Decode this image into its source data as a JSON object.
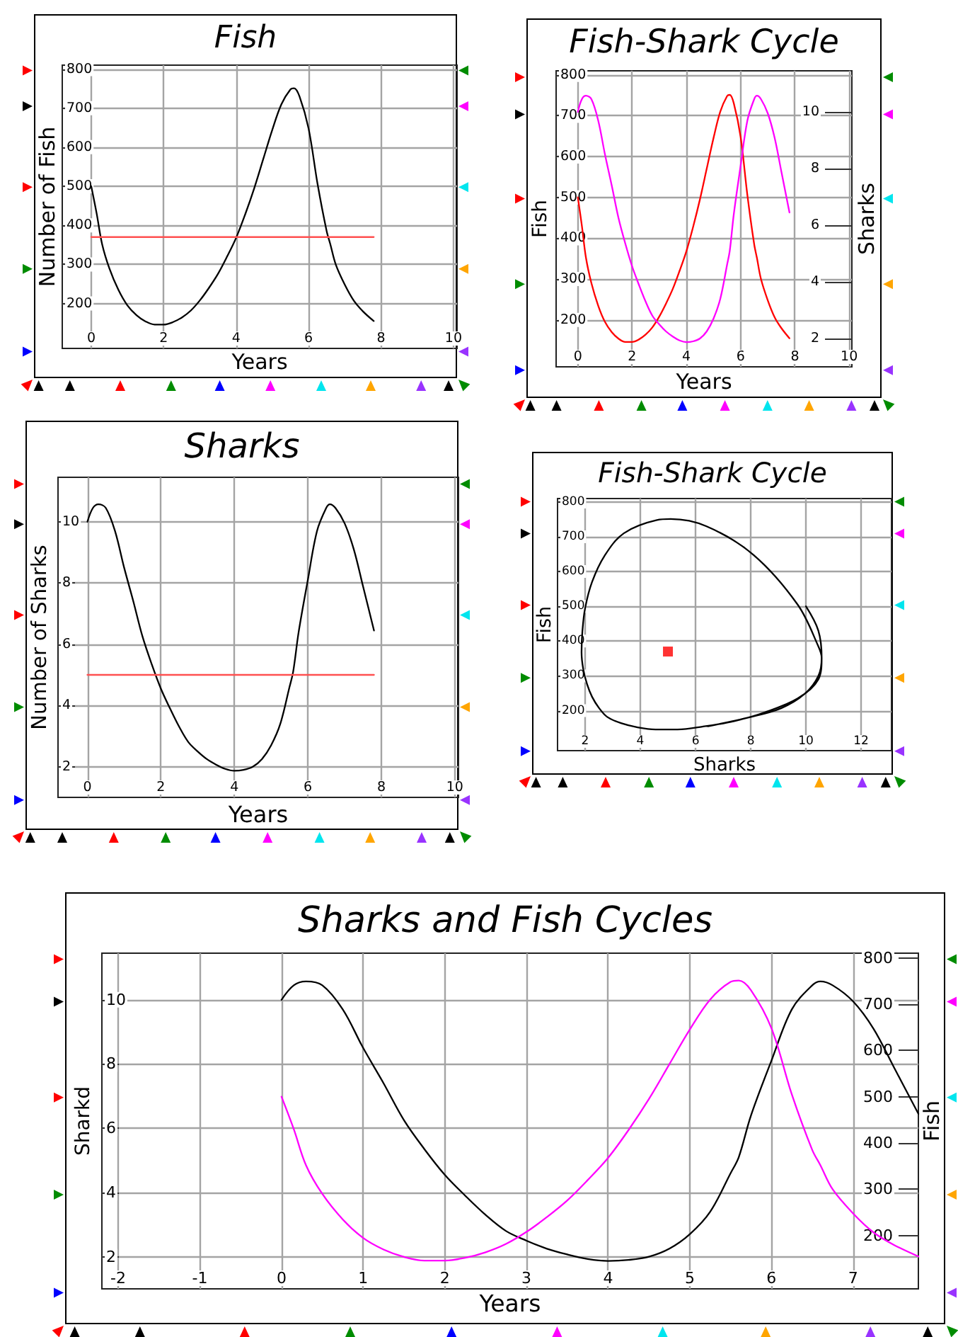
{
  "chart_data": [
    {
      "type": "line",
      "title": "Fish",
      "xlabel": "Years",
      "ylabel": "Number of Fish",
      "x": [
        0,
        0.15,
        0.3,
        0.5,
        0.75,
        1,
        1.25,
        1.5,
        1.75,
        2,
        2.25,
        2.5,
        2.75,
        3,
        3.25,
        3.5,
        3.75,
        4,
        4.25,
        4.5,
        4.75,
        5,
        5.25,
        5.5,
        5.6,
        5.75,
        6,
        6.25,
        6.5,
        6.6,
        6.75,
        7,
        7.25,
        7.5,
        7.8
      ],
      "xlim": [
        -0.8,
        10.1
      ],
      "xticks": [
        0,
        2,
        4,
        6,
        8,
        10
      ],
      "ylim": [
        85,
        810
      ],
      "yticks": [
        200,
        300,
        400,
        500,
        600,
        700,
        800
      ],
      "grid": true,
      "series": [
        {
          "color": "#000000",
          "values": [
            500,
            430,
            352,
            290,
            235,
            195,
            170,
            154,
            146,
            146,
            152,
            164,
            182,
            208,
            240,
            276,
            320,
            368,
            428,
            495,
            570,
            645,
            710,
            748,
            751,
            730,
            648,
            505,
            385,
            352,
            300,
            248,
            207,
            180,
            155
          ]
        },
        {
          "color": "#ff5050",
          "x": [
            0,
            7.8
          ],
          "values": [
            370,
            370
          ]
        }
      ]
    },
    {
      "type": "line",
      "title": "Fish-Shark Cycle",
      "xlabel": "Years",
      "ylabel": "Fish",
      "y2label": "Sharks",
      "x": [
        0,
        0.15,
        0.3,
        0.5,
        0.75,
        1,
        1.25,
        1.5,
        1.75,
        2,
        2.25,
        2.5,
        2.75,
        3,
        3.25,
        3.5,
        3.75,
        4,
        4.25,
        4.5,
        4.75,
        5,
        5.25,
        5.5,
        5.6,
        5.75,
        6,
        6.25,
        6.5,
        6.6,
        6.75,
        7,
        7.25,
        7.5,
        7.8
      ],
      "xlim": [
        -0.8,
        10.1
      ],
      "xticks": [
        0,
        2,
        4,
        6,
        8,
        10
      ],
      "ylim": [
        85,
        810
      ],
      "yticks": [
        200,
        300,
        400,
        500,
        600,
        700,
        800
      ],
      "y2lim": [
        1,
        11.45
      ],
      "y2ticks": [
        2,
        4,
        6,
        8,
        10
      ],
      "grid": true,
      "series": [
        {
          "color": "#ff0000",
          "values": [
            500,
            430,
            352,
            290,
            235,
            195,
            170,
            154,
            146,
            146,
            152,
            164,
            182,
            208,
            240,
            276,
            320,
            368,
            428,
            495,
            570,
            645,
            710,
            748,
            751,
            730,
            648,
            505,
            385,
            352,
            300,
            248,
            207,
            180,
            155
          ]
        },
        {
          "color": "#ff00ff",
          "axis": "y2",
          "values": [
            10,
            10.45,
            10.57,
            10.45,
            9.7,
            8.5,
            7.4,
            6.25,
            5.35,
            4.55,
            3.9,
            3.3,
            2.8,
            2.5,
            2.25,
            2.07,
            1.93,
            1.87,
            1.9,
            2,
            2.25,
            2.7,
            3.4,
            4.6,
            5.1,
            6.4,
            8.1,
            9.7,
            10.45,
            10.57,
            10.45,
            9.95,
            9.1,
            7.9,
            6.45
          ]
        }
      ]
    },
    {
      "type": "line",
      "title": "Sharks",
      "xlabel": "Years",
      "ylabel": "Number of Sharks",
      "x": [
        0,
        0.15,
        0.3,
        0.5,
        0.75,
        1,
        1.25,
        1.5,
        1.75,
        2,
        2.25,
        2.5,
        2.75,
        3,
        3.25,
        3.5,
        3.75,
        4,
        4.25,
        4.5,
        4.75,
        5,
        5.25,
        5.5,
        5.6,
        5.75,
        6,
        6.25,
        6.5,
        6.6,
        6.75,
        7,
        7.25,
        7.5,
        7.8
      ],
      "xlim": [
        -0.8,
        10.1
      ],
      "xticks": [
        0,
        2,
        4,
        6,
        8,
        10
      ],
      "ylim": [
        1,
        11.45
      ],
      "yticks": [
        2,
        4,
        6,
        8,
        10
      ],
      "grid": true,
      "series": [
        {
          "color": "#000000",
          "values": [
            10,
            10.45,
            10.57,
            10.45,
            9.7,
            8.5,
            7.4,
            6.25,
            5.35,
            4.55,
            3.9,
            3.3,
            2.8,
            2.5,
            2.25,
            2.07,
            1.93,
            1.87,
            1.9,
            2,
            2.25,
            2.7,
            3.4,
            4.6,
            5.1,
            6.4,
            8.1,
            9.7,
            10.45,
            10.57,
            10.45,
            9.95,
            9.1,
            7.9,
            6.45
          ]
        },
        {
          "color": "#ff5050",
          "x": [
            0,
            7.8
          ],
          "values": [
            5,
            5
          ]
        }
      ]
    },
    {
      "type": "line",
      "title": "Fish-Shark Cycle",
      "xlabel": "Sharks",
      "ylabel": "Fish",
      "xlim": [
        1,
        13.1
      ],
      "xticks": [
        2,
        4,
        6,
        8,
        10,
        12
      ],
      "ylim": [
        85,
        810
      ],
      "yticks": [
        200,
        300,
        400,
        500,
        600,
        700,
        800
      ],
      "grid": true,
      "series": [
        {
          "color": "#000000",
          "x": [
            10,
            10.45,
            10.57,
            10.45,
            9.7,
            8.5,
            7.4,
            6.25,
            5.35,
            4.55,
            3.9,
            3.3,
            2.8,
            2.5,
            2.25,
            2.07,
            1.93,
            1.87,
            1.9,
            2,
            2.25,
            2.7,
            3.4,
            4.6,
            5.1,
            6.4,
            8.1,
            9.7,
            10.45,
            10.57,
            10.45,
            9.95,
            9.1,
            7.9,
            6.45
          ],
          "values": [
            500,
            430,
            352,
            290,
            235,
            195,
            170,
            154,
            146,
            146,
            152,
            164,
            182,
            208,
            240,
            276,
            320,
            368,
            428,
            495,
            570,
            645,
            710,
            748,
            751,
            730,
            648,
            505,
            385,
            352,
            300,
            248,
            207,
            180,
            155
          ]
        },
        {
          "type": "scatter",
          "color": "#ff0000",
          "marker": "square",
          "x": [
            5
          ],
          "values": [
            370
          ]
        }
      ]
    },
    {
      "type": "line",
      "title": "Sharks and Fish Cycles",
      "xlabel": "Years",
      "ylabel": "Sharkd",
      "y2label": "Fish",
      "x": [
        0,
        0.15,
        0.3,
        0.5,
        0.75,
        1,
        1.25,
        1.5,
        1.75,
        2,
        2.25,
        2.5,
        2.75,
        3,
        3.25,
        3.5,
        3.75,
        4,
        4.25,
        4.5,
        4.75,
        5,
        5.25,
        5.5,
        5.6,
        5.75,
        6,
        6.25,
        6.5,
        6.6,
        6.75,
        7,
        7.25,
        7.5,
        7.8
      ],
      "xlim": [
        -2.2,
        7.8
      ],
      "xticks": [
        -2,
        -1,
        0,
        1,
        2,
        3,
        4,
        5,
        6,
        7
      ],
      "ylim": [
        1,
        11.45
      ],
      "yticks": [
        2,
        4,
        6,
        8,
        10
      ],
      "y2lim": [
        85,
        810
      ],
      "y2ticks": [
        200,
        300,
        400,
        500,
        600,
        700,
        800
      ],
      "grid": true,
      "series": [
        {
          "color": "#000000",
          "values": [
            10,
            10.45,
            10.57,
            10.45,
            9.7,
            8.5,
            7.4,
            6.25,
            5.35,
            4.55,
            3.9,
            3.3,
            2.8,
            2.5,
            2.25,
            2.07,
            1.93,
            1.87,
            1.9,
            2,
            2.25,
            2.7,
            3.4,
            4.6,
            5.1,
            6.4,
            8.1,
            9.7,
            10.45,
            10.57,
            10.45,
            9.95,
            9.1,
            7.9,
            6.45
          ]
        },
        {
          "color": "#ff00ff",
          "axis": "y2",
          "values": [
            500,
            430,
            352,
            290,
            235,
            195,
            170,
            154,
            146,
            146,
            152,
            164,
            182,
            208,
            240,
            276,
            320,
            368,
            428,
            495,
            570,
            645,
            710,
            748,
            751,
            730,
            648,
            505,
            385,
            352,
            300,
            248,
            207,
            180,
            155
          ]
        }
      ]
    }
  ]
}
